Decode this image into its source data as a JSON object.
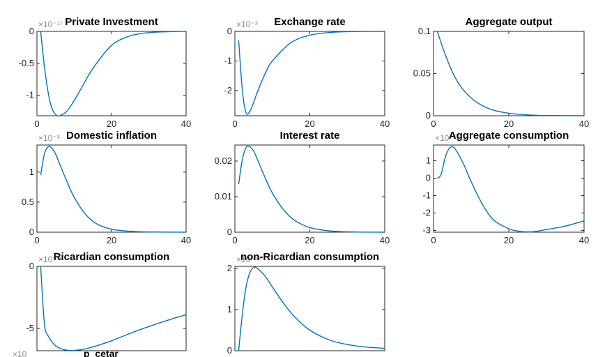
{
  "figure": {
    "line_color": "#0072BD",
    "partial_labels": {
      "exponent_prefix": "×10",
      "clipped_title": "p_cetar"
    }
  },
  "chart_data": [
    {
      "type": "line",
      "title": "Private Investment",
      "exponent_label": "×10⁻¹⁷",
      "x": [
        1,
        2,
        3,
        4,
        5,
        6,
        8,
        10,
        12,
        15,
        20,
        25,
        30,
        35,
        40
      ],
      "series": [
        {
          "values": [
            0,
            -0.55,
            -0.95,
            -1.2,
            -1.3,
            -1.32,
            -1.25,
            -1.08,
            -0.88,
            -0.58,
            -0.22,
            -0.07,
            -0.02,
            -0.005,
            0
          ]
        }
      ],
      "xlim": [
        0,
        40
      ],
      "ylim": [
        -1.32,
        0
      ],
      "xticks": [
        0,
        20,
        40
      ],
      "yticks": [
        -1,
        -0.5,
        0
      ],
      "xticklabels": [
        "0",
        "20",
        "40"
      ],
      "yticklabels": [
        "-1",
        "-0.5",
        "0"
      ]
    },
    {
      "type": "line",
      "title": "Exchange rate",
      "exponent_label": "×10⁻³",
      "x": [
        1,
        2,
        3,
        4,
        5,
        6,
        8,
        10,
        15,
        20,
        25,
        30,
        40
      ],
      "series": [
        {
          "values": [
            -0.3,
            -2.0,
            -2.75,
            -2.7,
            -2.4,
            -2.05,
            -1.45,
            -1.0,
            -0.38,
            -0.13,
            -0.04,
            -0.01,
            0
          ]
        }
      ],
      "xlim": [
        0,
        40
      ],
      "ylim": [
        -2.85,
        0
      ],
      "xticks": [
        0,
        20,
        40
      ],
      "yticks": [
        -2,
        -1,
        0
      ],
      "xticklabels": [
        "0",
        "20",
        "40"
      ],
      "yticklabels": [
        "-2",
        "-1",
        "0"
      ]
    },
    {
      "type": "line",
      "title": "Aggregate output",
      "x": [
        1,
        3,
        5,
        7,
        10,
        13,
        16,
        20,
        25,
        30,
        40
      ],
      "series": [
        {
          "values": [
            0.1,
            0.074,
            0.052,
            0.036,
            0.021,
            0.012,
            0.0065,
            0.003,
            0.001,
            0.0003,
            0
          ]
        }
      ],
      "xlim": [
        0,
        40
      ],
      "ylim": [
        0,
        0.1
      ],
      "xticks": [
        0,
        20,
        40
      ],
      "yticks": [
        0,
        0.05,
        0.1
      ],
      "xticklabels": [
        "0",
        "20",
        "40"
      ],
      "yticklabels": [
        "0",
        "0.05",
        "0.1"
      ]
    },
    {
      "type": "line",
      "title": "Domestic inflation",
      "exponent_label": "×10⁻³",
      "x": [
        1,
        2,
        3,
        4,
        5,
        6,
        8,
        10,
        13,
        16,
        20,
        25,
        30,
        40
      ],
      "series": [
        {
          "values": [
            0.95,
            1.3,
            1.42,
            1.4,
            1.3,
            1.15,
            0.85,
            0.58,
            0.3,
            0.14,
            0.05,
            0.015,
            0.004,
            0
          ]
        }
      ],
      "xlim": [
        0,
        40
      ],
      "ylim": [
        0,
        1.45
      ],
      "xticks": [
        0,
        20,
        40
      ],
      "yticks": [
        0,
        0.5,
        1
      ],
      "xticklabels": [
        "0",
        "20",
        "40"
      ],
      "yticklabels": [
        "0",
        "0.5",
        "1"
      ]
    },
    {
      "type": "line",
      "title": "Interest rate",
      "x": [
        1,
        2,
        3,
        4,
        5,
        6,
        8,
        10,
        13,
        16,
        20,
        25,
        30,
        40
      ],
      "series": [
        {
          "values": [
            0.0135,
            0.0205,
            0.0238,
            0.024,
            0.0228,
            0.0205,
            0.0155,
            0.011,
            0.0063,
            0.0033,
            0.0013,
            0.0004,
            0.0001,
            0
          ]
        }
      ],
      "xlim": [
        0,
        40
      ],
      "ylim": [
        0,
        0.0245
      ],
      "xticks": [
        0,
        20,
        40
      ],
      "yticks": [
        0,
        0.01,
        0.02
      ],
      "xticklabels": [
        "0",
        "20",
        "40"
      ],
      "yticklabels": [
        "0",
        "0.01",
        "0.02"
      ]
    },
    {
      "type": "line",
      "title": "Aggregate consumption",
      "exponent_label": "×10⁻¹⁷",
      "x": [
        1,
        2,
        3,
        4,
        5,
        6,
        8,
        10,
        13,
        16,
        20,
        23,
        26,
        30,
        35,
        40
      ],
      "series": [
        {
          "values": [
            0,
            0.2,
            1.1,
            1.65,
            1.8,
            1.6,
            0.8,
            -0.2,
            -1.5,
            -2.4,
            -2.9,
            -3.05,
            -3.08,
            -2.95,
            -2.75,
            -2.45
          ]
        }
      ],
      "xlim": [
        0,
        40
      ],
      "ylim": [
        -3.1,
        1.9
      ],
      "xticks": [
        0,
        20,
        40
      ],
      "yticks": [
        -3,
        -2,
        -1,
        0,
        1
      ],
      "xticklabels": [
        "0",
        "20",
        "40"
      ],
      "yticklabels": [
        "-3",
        "-2",
        "-1",
        "0",
        "1"
      ]
    },
    {
      "type": "line",
      "title": "Ricardian consumption",
      "exponent_label": "×10⁻¹⁶",
      "x": [
        1,
        2,
        3,
        5,
        7,
        9,
        11,
        13,
        16,
        20,
        25,
        30,
        35,
        40
      ],
      "series": [
        {
          "values": [
            0,
            -4.6,
            -5.6,
            -6.4,
            -6.7,
            -6.78,
            -6.75,
            -6.65,
            -6.4,
            -6.0,
            -5.4,
            -4.85,
            -4.35,
            -3.9
          ]
        }
      ],
      "xlim": [
        0,
        40
      ],
      "ylim": [
        -6.8,
        0
      ],
      "xticks": [],
      "yticks": [
        -5,
        0
      ],
      "xticklabels": [],
      "yticklabels": [
        "-5",
        "0"
      ]
    },
    {
      "type": "line",
      "title": "non-Ricardian consumption",
      "exponent_label": "×10⁻¹⁶",
      "x": [
        1,
        2,
        3,
        4,
        5,
        6,
        8,
        10,
        13,
        16,
        20,
        25,
        30,
        35,
        40
      ],
      "series": [
        {
          "values": [
            0,
            0.9,
            1.55,
            1.9,
            2.02,
            2.0,
            1.82,
            1.55,
            1.15,
            0.82,
            0.5,
            0.27,
            0.15,
            0.09,
            0.06
          ]
        }
      ],
      "xlim": [
        0,
        40
      ],
      "ylim": [
        0,
        2.05
      ],
      "xticks": [],
      "yticks": [
        0,
        1,
        2
      ],
      "xticklabels": [],
      "yticklabels": [
        "0",
        "1",
        "2"
      ]
    }
  ]
}
